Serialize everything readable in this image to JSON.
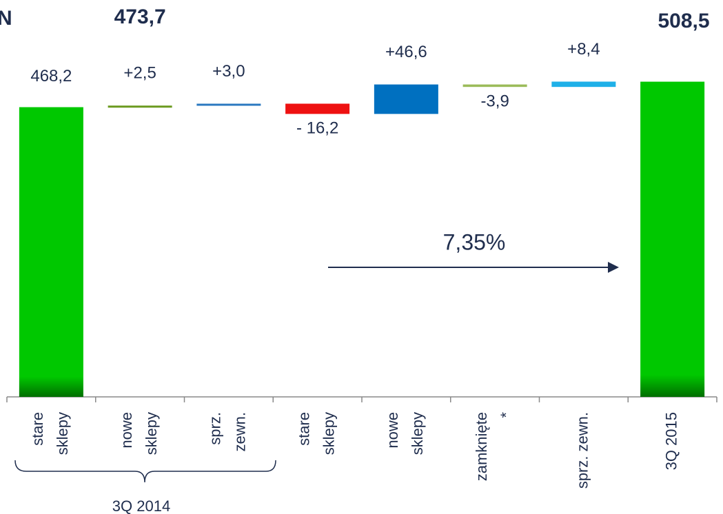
{
  "chart_data": {
    "type": "waterfall",
    "title": "N",
    "categories": [
      [
        "stare",
        "sklepy"
      ],
      [
        "nowe",
        "sklepy"
      ],
      [
        "sprz.",
        "zewn."
      ],
      [
        "stare",
        "sklepy"
      ],
      [
        "nowe",
        "sklepy"
      ],
      [
        "zamknięte",
        "*"
      ],
      [
        "sprz. zewn."
      ],
      [
        "3Q 2015"
      ]
    ],
    "measure": [
      "absolute",
      "relative",
      "relative",
      "relative",
      "relative",
      "relative",
      "relative",
      "total"
    ],
    "values": [
      468.2,
      2.5,
      3.0,
      -16.2,
      46.6,
      -3.9,
      8.4,
      508.5
    ],
    "value_labels": [
      "468,2",
      "+2,5",
      "+3,0",
      "- 16,2",
      "+46,6",
      "-3,9",
      "+8,4",
      "508,5"
    ],
    "colors": [
      "#00c800",
      "#6b9a1f",
      "#2a78c0",
      "#ee1111",
      "#0070c0",
      "#9bbb59",
      "#1fb0e8",
      "#00c800"
    ],
    "ylim": [
      10,
      520
    ],
    "subtotal": {
      "after": 2,
      "value": 473.7,
      "label": "473,7"
    },
    "group_label": "3Q 2014",
    "growth_label": "7,35%"
  }
}
